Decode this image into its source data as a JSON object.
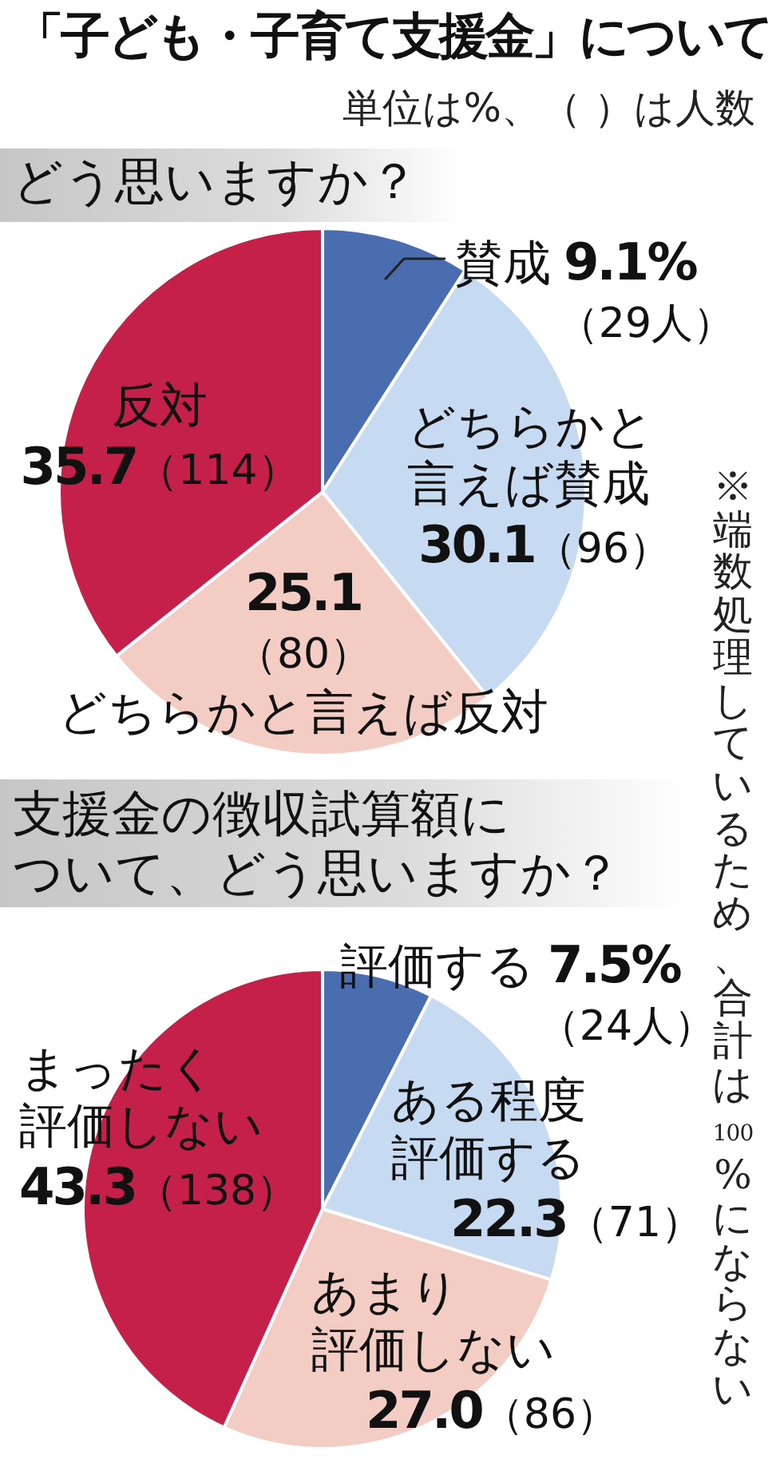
{
  "chart_data": [
    {
      "type": "other",
      "title": "「子ども・子育て支援金」について",
      "subtitle": "単位は%、（ ）は人数",
      "annotations": [
        "※端数処理しているため、合計は100%にならない"
      ]
    },
    {
      "type": "pie",
      "title": "どう思いますか？",
      "categories": [
        "賛成",
        "どちらかと言えば賛成",
        "どちらかと言えば反対",
        "反対"
      ],
      "values": [
        9.1,
        30.1,
        25.1,
        35.7
      ],
      "colors": [
        "#4a6db0",
        "#c6daf1",
        "#f3cdc4",
        "#c4204a"
      ],
      "value_labels": [
        "9.1%（29人）",
        "30.1（96）",
        "25.1（80）",
        "35.7（114）"
      ]
    },
    {
      "type": "pie",
      "title": "支援金の徴収試算額について、どう思いますか？",
      "categories": [
        "評価する",
        "ある程度評価する",
        "あまり評価しない",
        "まったく評価しない"
      ],
      "values": [
        7.5,
        22.3,
        27.0,
        43.3
      ],
      "colors": [
        "#4a6db0",
        "#c6daf1",
        "#f3cdc4",
        "#c4204a"
      ],
      "value_labels": [
        "7.5%（24人）",
        "22.3（71）",
        "27.0（86）",
        "43.3（138）"
      ]
    }
  ]
}
